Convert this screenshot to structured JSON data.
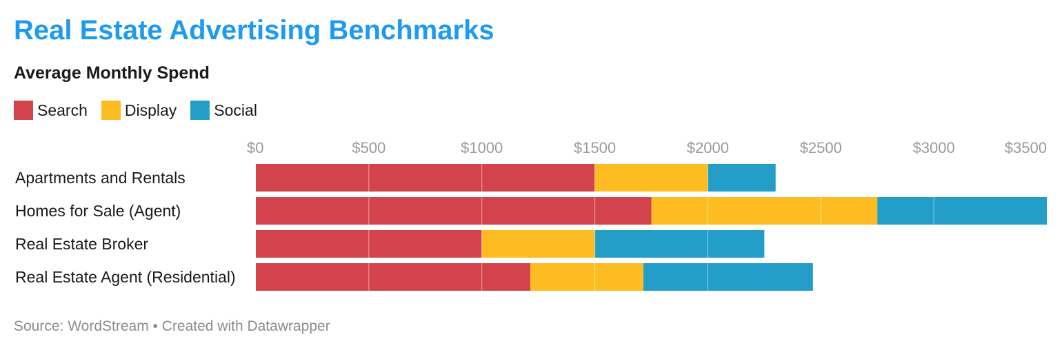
{
  "header": {
    "title": "Real Estate Advertising Benchmarks",
    "subtitle": "Average Monthly Spend"
  },
  "footer": {
    "source": "Source: WordStream",
    "separator": "•",
    "credit": "Created with Datawrapper"
  },
  "colors": {
    "title": "#1d9bf0",
    "Search": "#d3434b",
    "Display": "#fdbd22",
    "Social": "#239ec9"
  },
  "chart_data": {
    "type": "bar",
    "orientation": "horizontal",
    "stacked": true,
    "title": "Real Estate Advertising Benchmarks",
    "subtitle": "Average Monthly Spend",
    "legend_position": "top-left",
    "grid": true,
    "xlim": [
      0,
      3500
    ],
    "x_ticks": [
      {
        "value": 0,
        "label": "$0"
      },
      {
        "value": 500,
        "label": "$500"
      },
      {
        "value": 1000,
        "label": "$1000"
      },
      {
        "value": 1500,
        "label": "$1500"
      },
      {
        "value": 2000,
        "label": "$2000"
      },
      {
        "value": 2500,
        "label": "$2500"
      },
      {
        "value": 3000,
        "label": "$3000"
      },
      {
        "value": 3500,
        "label": "$3500"
      }
    ],
    "categories": [
      "Apartments and Rentals",
      "Homes for Sale (Agent)",
      "Real Estate Broker",
      "Real Estate Agent (Residential)"
    ],
    "series": [
      {
        "name": "Search",
        "values": [
          1500,
          1750,
          1000,
          1215
        ]
      },
      {
        "name": "Display",
        "values": [
          500,
          1000,
          500,
          500
        ]
      },
      {
        "name": "Social",
        "values": [
          300,
          750,
          750,
          750
        ]
      }
    ]
  }
}
